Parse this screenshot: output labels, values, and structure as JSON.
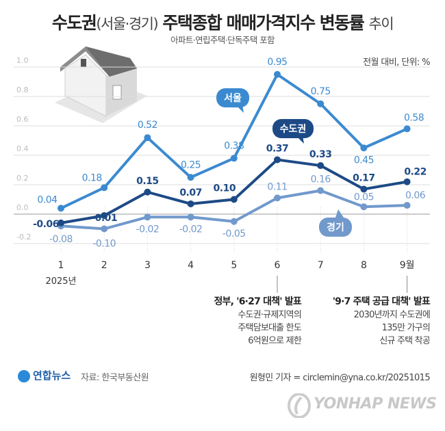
{
  "header": {
    "title_bold1": "수도권",
    "title_light1": "(서울·경기)",
    "title_bold2": "주택종합 매매가격지수 변동률",
    "title_light2": "추이",
    "subtitle": "아파트·연립주택·단독주택 포함",
    "unit": "전월 대비, 단위: %"
  },
  "chart_data": {
    "type": "line",
    "title": "수도권(서울·경기) 주택종합 매매가격지수 변동률 추이",
    "categories": [
      "1",
      "2",
      "3",
      "4",
      "5",
      "6",
      "7",
      "8",
      "9월"
    ],
    "x_sublabel": "2025년",
    "ylim": [
      -0.2,
      1.0
    ],
    "yticks": [
      "1.0",
      "0.8",
      "0.6",
      "0.4",
      "0.2",
      "0.0",
      "-0.2"
    ],
    "grid": true,
    "series": [
      {
        "name": "서울",
        "color": "#3b8ad0",
        "values": [
          0.04,
          0.18,
          0.52,
          0.25,
          0.38,
          0.95,
          0.75,
          0.45,
          0.58
        ],
        "labels": [
          "0.04",
          "0.18",
          "0.52",
          "0.25",
          "0.38",
          "0.95",
          "0.75",
          "0.45",
          "0.58"
        ]
      },
      {
        "name": "수도권",
        "color": "#1d4a86",
        "values": [
          -0.06,
          -0.01,
          0.15,
          0.07,
          0.1,
          0.37,
          0.33,
          0.17,
          0.22
        ],
        "labels": [
          "-0.06",
          "-0.01",
          "0.15",
          "0.07",
          "0.10",
          "0.37",
          "0.33",
          "0.17",
          "0.22"
        ]
      },
      {
        "name": "경기",
        "color": "#7199cc",
        "values": [
          -0.08,
          -0.1,
          -0.02,
          -0.02,
          -0.05,
          0.11,
          0.16,
          0.05,
          0.06
        ],
        "labels": [
          "-0.08",
          "-0.10",
          "-0.02",
          "-0.02",
          "-0.05",
          "0.11",
          "0.16",
          "0.05",
          "0.06"
        ]
      }
    ],
    "annotations": [
      {
        "category": "6",
        "title": "정부, '6·27 대책' 발표",
        "lines": [
          "수도권·규제지역의",
          "주택담보대출 한도",
          "6억원으로 제한"
        ]
      },
      {
        "category": "9월",
        "title": "'9·7 주택 공급 대책' 발표",
        "lines": [
          "2030년까지 수도권에",
          "135만 가구의",
          "신규 주택 착공"
        ]
      }
    ]
  },
  "footer": {
    "logo": "연합뉴스",
    "source": "자료: 한국부동산원",
    "credit": "원형민 기자 = circlemin@yna.co.kr/20251015",
    "watermark": "YONHAP NEWS"
  }
}
